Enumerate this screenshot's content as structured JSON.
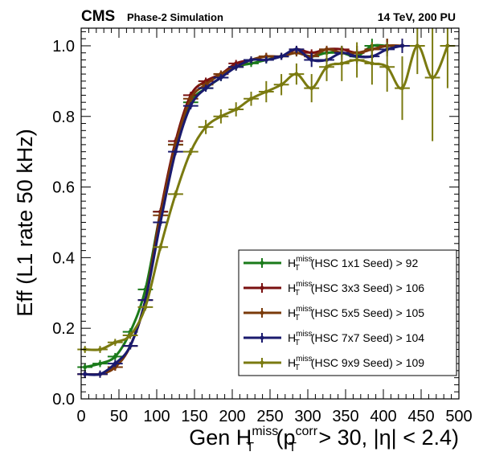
{
  "header": {
    "experiment": "CMS",
    "subtitle": "Phase-2 Simulation",
    "energy_pileup": "14 TeV, 200 PU"
  },
  "chart_data": {
    "type": "line",
    "title": "",
    "xlabel_parts": {
      "main": "Gen H",
      "sup": "miss",
      "sub": "T",
      "paren_open": " (p",
      "p_sup": "corr",
      "p_sub": "T",
      "rest": " > 30, |η| < 2.4)"
    },
    "ylabel": "Eff (L1 rate 50 kHz)",
    "xlim": [
      0,
      500
    ],
    "ylim": [
      0,
      1.05
    ],
    "xticks": [
      "0",
      "50",
      "100",
      "150",
      "200",
      "250",
      "300",
      "350",
      "400",
      "450",
      "500"
    ],
    "yticks": [
      "0.0",
      "0.2",
      "0.4",
      "0.6",
      "0.8",
      "1.0"
    ],
    "legend_placement": "lower-right",
    "series": [
      {
        "name": "(HSC 1x1 Seed) > 92",
        "color": "#1a7a1a",
        "x": [
          5,
          25,
          45,
          65,
          85,
          105,
          125,
          145,
          165,
          185,
          205,
          225,
          245,
          265,
          285,
          305,
          325,
          345,
          365,
          385,
          405,
          425
        ],
        "y": [
          0.09,
          0.1,
          0.12,
          0.19,
          0.31,
          0.53,
          0.72,
          0.84,
          0.88,
          0.91,
          0.94,
          0.95,
          0.96,
          0.97,
          0.98,
          0.97,
          0.98,
          0.98,
          0.97,
          1.0,
          1.0,
          1.0
        ],
        "yerr": [
          0.01,
          0.01,
          0.01,
          0.01,
          0.01,
          0.01,
          0.01,
          0.01,
          0.01,
          0.01,
          0.01,
          0.01,
          0.01,
          0.01,
          0.01,
          0.01,
          0.01,
          0.01,
          0.02,
          0.02,
          0.02,
          0.02
        ]
      },
      {
        "name": "(HSC 3x3 Seed) > 106",
        "color": "#7a1010",
        "x": [
          5,
          25,
          45,
          65,
          85,
          105,
          125,
          145,
          165,
          185,
          205,
          225,
          245,
          265,
          285,
          305,
          325,
          345,
          365,
          385,
          405,
          425
        ],
        "y": [
          0.07,
          0.07,
          0.09,
          0.15,
          0.28,
          0.53,
          0.73,
          0.86,
          0.9,
          0.92,
          0.95,
          0.96,
          0.97,
          0.97,
          0.99,
          0.98,
          0.99,
          0.99,
          0.98,
          0.99,
          1.0,
          1.0
        ],
        "yerr": [
          0.01,
          0.01,
          0.01,
          0.01,
          0.01,
          0.01,
          0.01,
          0.01,
          0.01,
          0.01,
          0.01,
          0.01,
          0.01,
          0.01,
          0.01,
          0.01,
          0.01,
          0.01,
          0.02,
          0.02,
          0.02,
          0.02
        ]
      },
      {
        "name": "(HSC 5x5 Seed) > 105",
        "color": "#7a3a0a",
        "x": [
          5,
          25,
          45,
          65,
          85,
          105,
          125,
          145,
          165,
          185,
          205,
          225,
          245,
          265,
          285,
          305,
          325,
          345,
          365,
          385,
          405,
          425
        ],
        "y": [
          0.07,
          0.07,
          0.09,
          0.15,
          0.28,
          0.52,
          0.72,
          0.85,
          0.89,
          0.92,
          0.94,
          0.96,
          0.97,
          0.97,
          0.98,
          0.97,
          0.99,
          0.98,
          0.98,
          0.99,
          1.0,
          1.0
        ],
        "yerr": [
          0.01,
          0.01,
          0.01,
          0.01,
          0.01,
          0.01,
          0.01,
          0.01,
          0.01,
          0.01,
          0.01,
          0.01,
          0.01,
          0.01,
          0.01,
          0.01,
          0.01,
          0.01,
          0.02,
          0.02,
          0.02,
          0.02
        ]
      },
      {
        "name": "(HSC 7x7 Seed) > 104",
        "color": "#1a1a6e",
        "x": [
          5,
          25,
          45,
          65,
          85,
          105,
          125,
          145,
          165,
          185,
          205,
          225,
          245,
          265,
          285,
          305,
          325,
          345,
          365,
          385,
          405,
          425
        ],
        "y": [
          0.07,
          0.07,
          0.1,
          0.15,
          0.28,
          0.5,
          0.7,
          0.83,
          0.88,
          0.91,
          0.94,
          0.96,
          0.96,
          0.97,
          0.99,
          0.96,
          0.96,
          0.98,
          0.97,
          0.97,
          0.99,
          1.0
        ],
        "yerr": [
          0.01,
          0.01,
          0.01,
          0.01,
          0.01,
          0.01,
          0.01,
          0.01,
          0.01,
          0.01,
          0.01,
          0.01,
          0.01,
          0.01,
          0.01,
          0.02,
          0.02,
          0.02,
          0.02,
          0.02,
          0.02,
          0.02
        ]
      },
      {
        "name": "(HSC 9x9 Seed) > 109",
        "color": "#7a7a10",
        "x": [
          5,
          25,
          45,
          65,
          85,
          105,
          125,
          145,
          165,
          185,
          205,
          225,
          245,
          265,
          285,
          305,
          325,
          345,
          365,
          385,
          405,
          425,
          445,
          465,
          485
        ],
        "y": [
          0.14,
          0.14,
          0.16,
          0.18,
          0.26,
          0.43,
          0.58,
          0.7,
          0.77,
          0.8,
          0.82,
          0.85,
          0.87,
          0.89,
          0.92,
          0.88,
          0.94,
          0.95,
          0.96,
          0.95,
          0.94,
          0.88,
          1.0,
          0.91,
          1.0
        ],
        "yerr": [
          0.01,
          0.01,
          0.01,
          0.01,
          0.01,
          0.01,
          0.01,
          0.01,
          0.02,
          0.02,
          0.02,
          0.02,
          0.03,
          0.03,
          0.03,
          0.04,
          0.04,
          0.05,
          0.05,
          0.06,
          0.07,
          0.09,
          0.08,
          0.18,
          0.12
        ]
      }
    ]
  }
}
